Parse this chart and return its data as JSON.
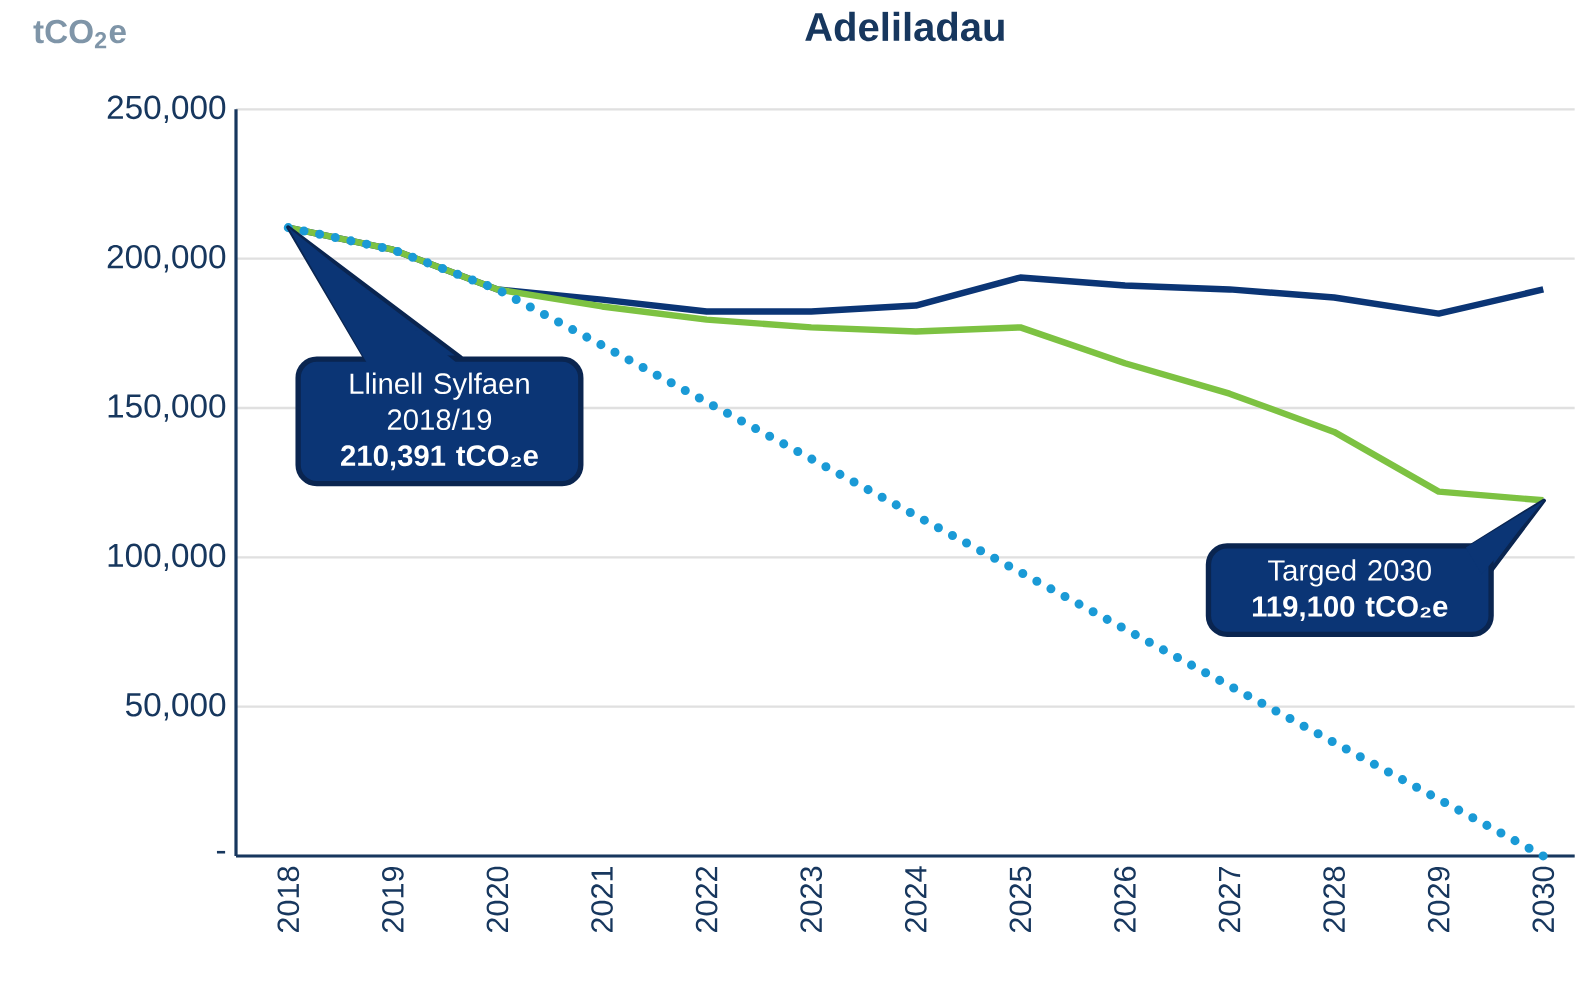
{
  "chart_data": {
    "type": "line",
    "title": "Adeliladau",
    "categories": [
      "2018",
      "2019",
      "2020",
      "2021",
      "2022",
      "2023",
      "2024",
      "2025",
      "2026",
      "2027",
      "2028",
      "2029",
      "2030"
    ],
    "series": [
      {
        "color": "#0b3575",
        "line_style": "solid",
        "values": [
          210391,
          203000,
          189700,
          186300,
          182300,
          182300,
          184300,
          193700,
          191000,
          189700,
          187000,
          181600,
          189700
        ]
      },
      {
        "color": "#7dc242",
        "line_style": "solid",
        "values": [
          210391,
          203000,
          189700,
          184000,
          179600,
          177000,
          175600,
          177000,
          165000,
          154800,
          142000,
          122000,
          119100
        ]
      },
      {
        "color": "#1a9ad6",
        "line_style": "dotted",
        "values": [
          210391,
          203000,
          189700,
          171000,
          152000,
          133000,
          114000,
          95000,
          76000,
          57000,
          38000,
          19000,
          0
        ]
      }
    ],
    "ylim": [
      0,
      250000
    ],
    "yticks": [
      {
        "value": 0,
        "label": "-"
      },
      {
        "value": 50000,
        "label": "50,000"
      },
      {
        "value": 100000,
        "label": "100,000"
      },
      {
        "value": 150000,
        "label": "150,000"
      },
      {
        "value": 200000,
        "label": "200,000"
      },
      {
        "value": 250000,
        "label": "250,000"
      }
    ],
    "grid": "y",
    "marker": "none",
    "annotations": [
      "Llinell Sylfaen 2018/19 **210,391 tCO₂e**",
      "Targed 2030 **119,100 tCO₂e**",
      "tCO$_{2}$e"
    ]
  }
}
